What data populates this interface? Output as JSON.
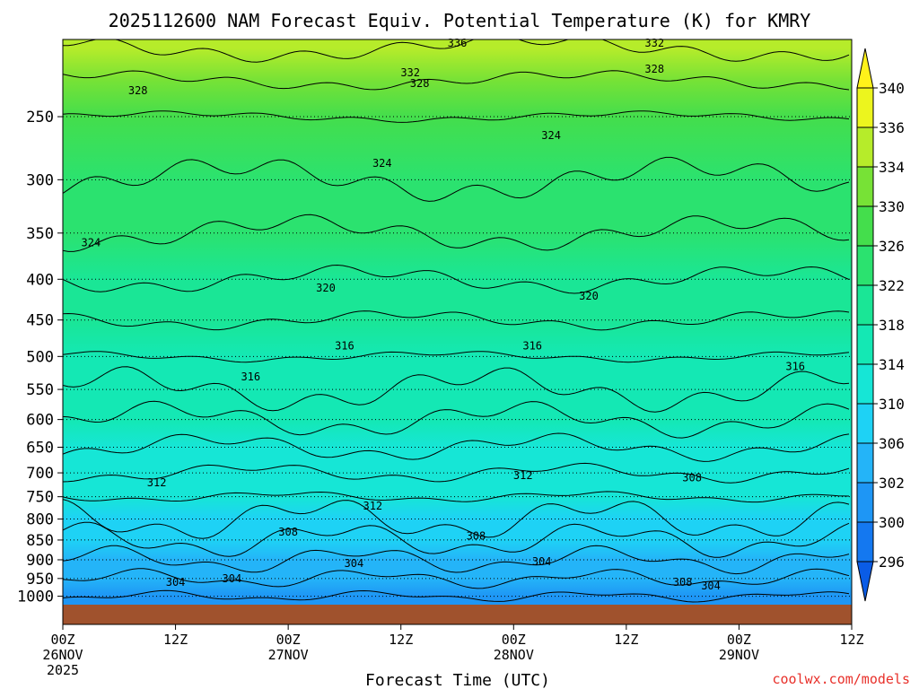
{
  "chart_data": {
    "type": "heatmap",
    "title": "2025112600 NAM Forecast Equiv. Potential Temperature (K) for KMRY",
    "xlabel": "Forecast Time (UTC)",
    "ylabel": "",
    "credit": "coolwx.com/models",
    "x_ticks": [
      {
        "hour": 0,
        "label": "00Z",
        "date": "26NOV",
        "year": "2025"
      },
      {
        "hour": 12,
        "label": "12Z",
        "date": "",
        "year": ""
      },
      {
        "hour": 24,
        "label": "00Z",
        "date": "27NOV",
        "year": ""
      },
      {
        "hour": 36,
        "label": "12Z",
        "date": "",
        "year": ""
      },
      {
        "hour": 48,
        "label": "00Z",
        "date": "28NOV",
        "year": ""
      },
      {
        "hour": 60,
        "label": "12Z",
        "date": "",
        "year": ""
      },
      {
        "hour": 72,
        "label": "00Z",
        "date": "29NOV",
        "year": ""
      },
      {
        "hour": 84,
        "label": "12Z",
        "date": "",
        "year": ""
      }
    ],
    "xlim": [
      0,
      84
    ],
    "y_ticks": [
      250,
      300,
      350,
      400,
      450,
      500,
      550,
      600,
      650,
      700,
      750,
      800,
      850,
      900,
      950,
      1000
    ],
    "ylim": [
      1030,
      200
    ],
    "y_scale": "log",
    "grid": true,
    "colorbar": {
      "labels": [
        296,
        300,
        302,
        306,
        310,
        314,
        318,
        322,
        326,
        330,
        334,
        336,
        340
      ],
      "colors": [
        "#0a5ce6",
        "#1478f0",
        "#1e96f5",
        "#24b4f8",
        "#1ed2f5",
        "#16e6d6",
        "#14e8b4",
        "#1ae696",
        "#2be26f",
        "#44de4c",
        "#77e236",
        "#b6ec2a",
        "#ecf51e",
        "#fff21a"
      ]
    },
    "theta_e_profile": [
      {
        "p": 1000,
        "theta_e": 300
      },
      {
        "p": 950,
        "theta_e": 303
      },
      {
        "p": 900,
        "theta_e": 305
      },
      {
        "p": 850,
        "theta_e": 307
      },
      {
        "p": 800,
        "theta_e": 309
      },
      {
        "p": 750,
        "theta_e": 311
      },
      {
        "p": 700,
        "theta_e": 312
      },
      {
        "p": 650,
        "theta_e": 313
      },
      {
        "p": 600,
        "theta_e": 314
      },
      {
        "p": 550,
        "theta_e": 315
      },
      {
        "p": 500,
        "theta_e": 316
      },
      {
        "p": 450,
        "theta_e": 318
      },
      {
        "p": 400,
        "theta_e": 320
      },
      {
        "p": 350,
        "theta_e": 322
      },
      {
        "p": 300,
        "theta_e": 324
      },
      {
        "p": 250,
        "theta_e": 327
      },
      {
        "p": 225,
        "theta_e": 330
      },
      {
        "p": 205,
        "theta_e": 335
      }
    ],
    "contour_labels": [
      {
        "text": "336",
        "hour": 42,
        "p": 202
      },
      {
        "text": "332",
        "hour": 63,
        "p": 202
      },
      {
        "text": "332",
        "hour": 37,
        "p": 220
      },
      {
        "text": "328",
        "hour": 63,
        "p": 218
      },
      {
        "text": "328",
        "hour": 38,
        "p": 227
      },
      {
        "text": "328",
        "hour": 8,
        "p": 232
      },
      {
        "text": "324",
        "hour": 52,
        "p": 264
      },
      {
        "text": "324",
        "hour": 34,
        "p": 286
      },
      {
        "text": "324",
        "hour": 3,
        "p": 360
      },
      {
        "text": "320",
        "hour": 28,
        "p": 410
      },
      {
        "text": "320",
        "hour": 56,
        "p": 420
      },
      {
        "text": "316",
        "hour": 30,
        "p": 485
      },
      {
        "text": "316",
        "hour": 50,
        "p": 485
      },
      {
        "text": "316",
        "hour": 20,
        "p": 530
      },
      {
        "text": "316",
        "hour": 78,
        "p": 515
      },
      {
        "text": "312",
        "hour": 10,
        "p": 720
      },
      {
        "text": "312",
        "hour": 49,
        "p": 705
      },
      {
        "text": "312",
        "hour": 33,
        "p": 770
      },
      {
        "text": "308",
        "hour": 67,
        "p": 710
      },
      {
        "text": "308",
        "hour": 24,
        "p": 830
      },
      {
        "text": "308",
        "hour": 44,
        "p": 840
      },
      {
        "text": "304",
        "hour": 31,
        "p": 910
      },
      {
        "text": "304",
        "hour": 51,
        "p": 905
      },
      {
        "text": "304",
        "hour": 12,
        "p": 960
      },
      {
        "text": "304",
        "hour": 18,
        "p": 950
      },
      {
        "text": "308",
        "hour": 66,
        "p": 960
      },
      {
        "text": "304",
        "hour": 69,
        "p": 970
      }
    ]
  }
}
